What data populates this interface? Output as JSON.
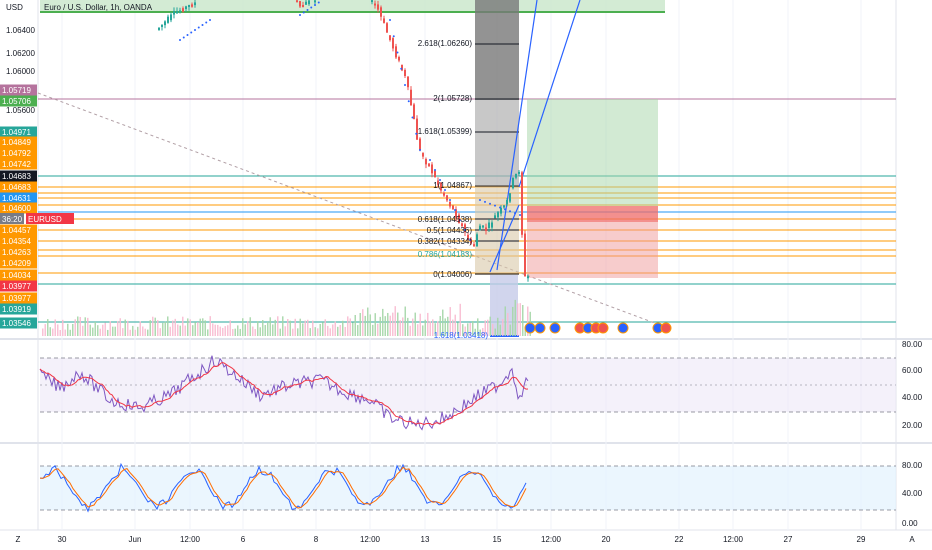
{
  "header": {
    "symbol_title": "Euro / U.S. Dollar, 1h, OANDA",
    "currency": "USD"
  },
  "left_axis": {
    "labels": [
      "1.06400",
      "1.06200",
      "1.06000",
      "1.05600"
    ]
  },
  "price_tags": [
    {
      "text": "1.05719",
      "color": "#b5739d"
    },
    {
      "text": "1.05706",
      "color": "#4caf50"
    },
    {
      "text": "1.04971",
      "color": "#26a69a"
    },
    {
      "text": "1.04849",
      "color": "#ff9800"
    },
    {
      "text": "1.04792",
      "color": "#ff9800"
    },
    {
      "text": "1.04742",
      "color": "#ff9800"
    },
    {
      "text": "1.04683",
      "color": "#131722"
    },
    {
      "text": "1.04683",
      "color": "#ff9800"
    },
    {
      "text": "1.04631",
      "color": "#2196f3"
    },
    {
      "text": "1.04600",
      "color": "#ff9800"
    },
    {
      "text": "36:20",
      "color": "#787b86"
    },
    {
      "text": "EURUSD",
      "color": "#f23645"
    },
    {
      "text": "1.04457",
      "color": "#ff9800"
    },
    {
      "text": "1.04354",
      "color": "#ff9800"
    },
    {
      "text": "1.04263",
      "color": "#ff9800"
    },
    {
      "text": "1.04209",
      "color": "#ff9800"
    },
    {
      "text": "1.04034",
      "color": "#ff9800"
    },
    {
      "text": "1.03977",
      "color": "#f23645"
    },
    {
      "text": "1.03977",
      "color": "#ff9800"
    },
    {
      "text": "1.03919",
      "color": "#26a69a"
    },
    {
      "text": "1.03546",
      "color": "#26a69a"
    }
  ],
  "fib_labels": [
    "2.618(1.06260)",
    "2(1.05728)",
    "1.618(1.05399)",
    "1(1.04867)",
    "0.618(1.04538)",
    "0.5(1.04436)",
    "0.382(1.04334)",
    "0.786(1.04183)",
    "0(1.04006)",
    "1.618(1.03418)"
  ],
  "right_axis": {
    "rsi_labels": [
      "80.00",
      "60.00",
      "40.00",
      "20.00"
    ],
    "stoch_labels": [
      "80.00",
      "40.00",
      "0.00"
    ]
  },
  "time_axis": {
    "labels": [
      "30",
      "Jun",
      "12:00",
      "6",
      "8",
      "12:00",
      "13",
      "15",
      "12:00",
      "20",
      "22",
      "12:00",
      "27",
      "29"
    ],
    "left_button": "Z",
    "right_button": "A"
  },
  "colors": {
    "up": "#26a69a",
    "down": "#ef5350",
    "rsi_line": "#7e57c2",
    "rsi_ma": "#f23645",
    "stoch_k": "#2962ff",
    "stoch_d": "#ff6d00"
  }
}
